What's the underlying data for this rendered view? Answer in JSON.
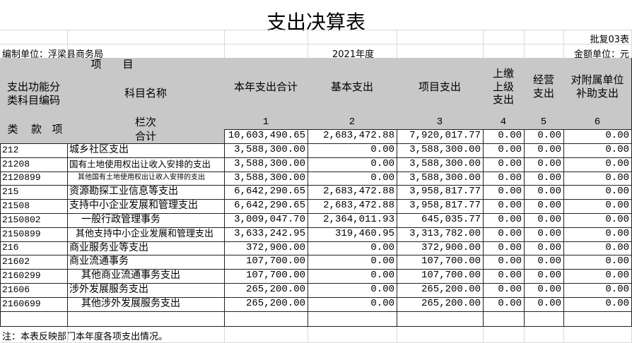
{
  "header": {
    "title": "支出决算表",
    "form_no": "批复03表",
    "unit": "编制单位：浮梁县商务局",
    "year": "2021年度",
    "currency": "金额单位：元"
  },
  "table": {
    "group_header": "项　　目",
    "code_header": "支出功能分类科目编码",
    "name_header": "科目名称",
    "columns": [
      "本年支出合计",
      "基本支出",
      "项目支出",
      "上缴上级支出",
      "经营支出",
      "对附属单位补助支出"
    ],
    "class_labels": [
      "类",
      "款",
      "项"
    ],
    "column_row_label": "栏次",
    "column_numbers": [
      "1",
      "2",
      "3",
      "4",
      "5",
      "6"
    ],
    "total": {
      "label": "合计",
      "values": [
        "10,603,490.65",
        "2,683,472.88",
        "7,920,017.77",
        "0.00",
        "0.00",
        "0.00"
      ]
    },
    "rows": [
      {
        "code": "212",
        "name": "城乡社区支出",
        "values": [
          "3,588,300.00",
          "0.00",
          "3,588,300.00",
          "0.00",
          "0.00",
          "0.00"
        ]
      },
      {
        "code": "21208",
        "name": "国有土地使用权出让收入安排的支出",
        "values": [
          "3,588,300.00",
          "0.00",
          "3,588,300.00",
          "0.00",
          "0.00",
          "0.00"
        ]
      },
      {
        "code": "2120899",
        "name": "其他国有土地使用权出让收入安排的支出",
        "values": [
          "3,588,300.00",
          "0.00",
          "3,588,300.00",
          "0.00",
          "0.00",
          "0.00"
        ]
      },
      {
        "code": "215",
        "name": "资源勘探工业信息等支出",
        "values": [
          "6,642,290.65",
          "2,683,472.88",
          "3,958,817.77",
          "0.00",
          "0.00",
          "0.00"
        ]
      },
      {
        "code": "21508",
        "name": "支持中小企业发展和管理支出",
        "values": [
          "6,642,290.65",
          "2,683,472.88",
          "3,958,817.77",
          "0.00",
          "0.00",
          "0.00"
        ]
      },
      {
        "code": "2150802",
        "name": "一般行政管理事务",
        "values": [
          "3,009,047.70",
          "2,364,011.93",
          "645,035.77",
          "0.00",
          "0.00",
          "0.00"
        ]
      },
      {
        "code": "2150899",
        "name": "其他支持中小企业发展和管理支出",
        "values": [
          "3,633,242.95",
          "319,460.95",
          "3,313,782.00",
          "0.00",
          "0.00",
          "0.00"
        ]
      },
      {
        "code": "216",
        "name": "商业服务业等支出",
        "values": [
          "372,900.00",
          "0.00",
          "372,900.00",
          "0.00",
          "0.00",
          "0.00"
        ]
      },
      {
        "code": "21602",
        "name": "商业流通事务",
        "values": [
          "107,700.00",
          "0.00",
          "107,700.00",
          "0.00",
          "0.00",
          "0.00"
        ]
      },
      {
        "code": "2160299",
        "name": "其他商业流通事务支出",
        "values": [
          "107,700.00",
          "0.00",
          "107,700.00",
          "0.00",
          "0.00",
          "0.00"
        ]
      },
      {
        "code": "21606",
        "name": "涉外发展服务支出",
        "values": [
          "265,200.00",
          "0.00",
          "265,200.00",
          "0.00",
          "0.00",
          "0.00"
        ]
      },
      {
        "code": "2160699",
        "name": "其他涉外发展服务支出",
        "values": [
          "265,200.00",
          "0.00",
          "265,200.00",
          "0.00",
          "0.00",
          "0.00"
        ]
      }
    ]
  },
  "note": "注：本表反映部门本年度各项支出情况。"
}
